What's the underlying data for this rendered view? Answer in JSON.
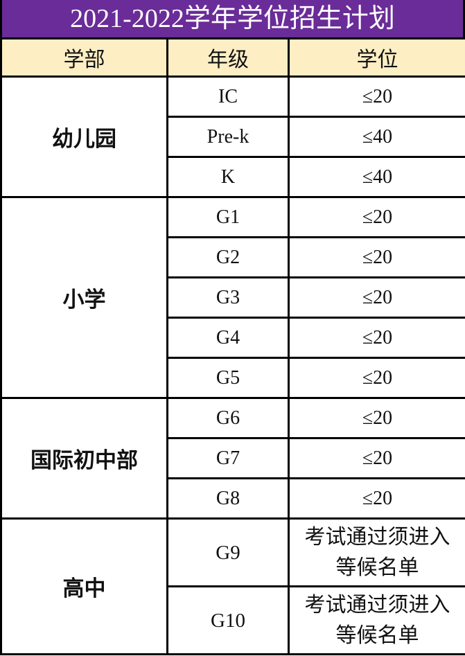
{
  "title": "2021-2022学年学位招生计划",
  "colors": {
    "title_bg": "#6a2c98",
    "header_bg": "#fdeec4"
  },
  "headers": [
    "学部",
    "年级",
    "学位"
  ],
  "sections": [
    {
      "dept": "幼儿园",
      "rows": [
        {
          "grade": "IC",
          "seats": "≤20"
        },
        {
          "grade": "Pre-k",
          "seats": "≤40"
        },
        {
          "grade": "K",
          "seats": "≤40"
        }
      ]
    },
    {
      "dept": "小学",
      "rows": [
        {
          "grade": "G1",
          "seats": "≤20"
        },
        {
          "grade": "G2",
          "seats": "≤20"
        },
        {
          "grade": "G3",
          "seats": "≤20"
        },
        {
          "grade": "G4",
          "seats": "≤20"
        },
        {
          "grade": "G5",
          "seats": "≤20"
        }
      ]
    },
    {
      "dept": "国际初中部",
      "rows": [
        {
          "grade": "G6",
          "seats": "≤20"
        },
        {
          "grade": "G7",
          "seats": "≤20"
        },
        {
          "grade": "G8",
          "seats": "≤20"
        }
      ]
    },
    {
      "dept": "高中",
      "rows": [
        {
          "grade": "G9",
          "seats_line1": "考试通过须进入",
          "seats_line2": "等候名单"
        },
        {
          "grade": "G10",
          "seats_line1": "考试通过须进入",
          "seats_line2": "等候名单"
        }
      ]
    }
  ]
}
